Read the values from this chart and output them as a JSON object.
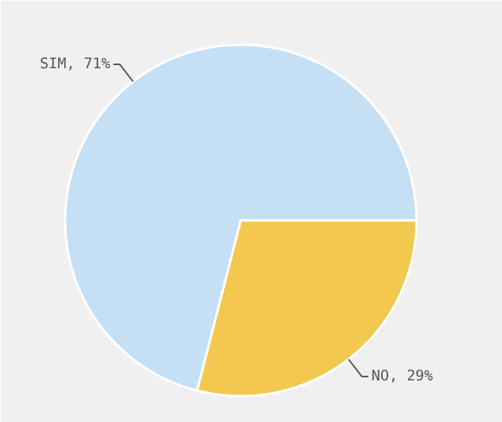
{
  "chart_data": {
    "type": "pie",
    "categories": [
      "SIM",
      "NO"
    ],
    "values": [
      71,
      29
    ],
    "colors": [
      "#c5dff5",
      "#f2c84f"
    ],
    "value_labels": [
      "71%",
      "29%"
    ]
  }
}
